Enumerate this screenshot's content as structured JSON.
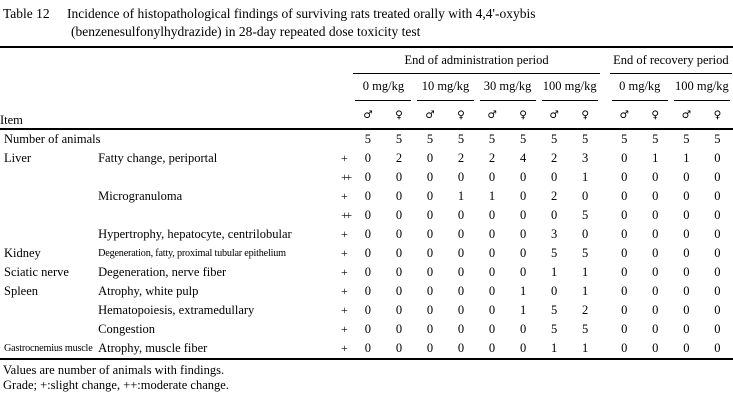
{
  "title": {
    "label": "Table 12",
    "line1": "Incidence of histopathological findings of surviving rats treated orally with 4,4'-oxybis",
    "line2": "(benzenesulfonylhydrazide) in 28-day repeated dose toxicity test"
  },
  "table": {
    "item_header": "Item",
    "period_groups": [
      {
        "label": "End of administration period",
        "doses": [
          "0 mg/kg",
          "10 mg/kg",
          "30 mg/kg",
          "100 mg/kg"
        ]
      },
      {
        "label": "End of recovery period",
        "doses": [
          "0 mg/kg",
          "100 mg/kg"
        ]
      }
    ],
    "sex_symbols": {
      "male": "♂",
      "female": "♀"
    },
    "number_of_animals": {
      "label": "Number of animals",
      "values": [
        5,
        5,
        5,
        5,
        5,
        5,
        5,
        5,
        5,
        5,
        5,
        5
      ]
    },
    "rows": [
      {
        "organ": "Liver",
        "finding": "Fatty change, periportal",
        "grade": "+",
        "values": [
          0,
          2,
          0,
          2,
          2,
          4,
          2,
          3,
          0,
          1,
          1,
          0
        ]
      },
      {
        "organ": "",
        "finding": "",
        "grade": "++",
        "values": [
          0,
          0,
          0,
          0,
          0,
          0,
          0,
          1,
          0,
          0,
          0,
          0
        ]
      },
      {
        "organ": "",
        "finding": "Microgranuloma",
        "grade": "+",
        "values": [
          0,
          0,
          0,
          1,
          1,
          0,
          2,
          0,
          0,
          0,
          0,
          0
        ]
      },
      {
        "organ": "",
        "finding": "",
        "grade": "++",
        "values": [
          0,
          0,
          0,
          0,
          0,
          0,
          0,
          5,
          0,
          0,
          0,
          0
        ]
      },
      {
        "organ": "",
        "finding": "Hypertrophy, hepatocyte, centrilobular",
        "grade": "+",
        "values": [
          0,
          0,
          0,
          0,
          0,
          0,
          3,
          0,
          0,
          0,
          0,
          0
        ]
      },
      {
        "organ": "Kidney",
        "finding": "Degeneration, fatty, proximal tubular epithelium",
        "grade": "+",
        "finding_condensed": true,
        "values": [
          0,
          0,
          0,
          0,
          0,
          0,
          5,
          5,
          0,
          0,
          0,
          0
        ]
      },
      {
        "organ": "Sciatic nerve",
        "finding": "Degeneration, nerve fiber",
        "grade": "+",
        "values": [
          0,
          0,
          0,
          0,
          0,
          0,
          1,
          1,
          0,
          0,
          0,
          0
        ]
      },
      {
        "organ": "Spleen",
        "finding": "Atrophy, white pulp",
        "grade": "+",
        "values": [
          0,
          0,
          0,
          0,
          0,
          1,
          0,
          1,
          0,
          0,
          0,
          0
        ]
      },
      {
        "organ": "",
        "finding": "Hematopoiesis, extramedullary",
        "grade": "+",
        "values": [
          0,
          0,
          0,
          0,
          0,
          1,
          5,
          2,
          0,
          0,
          0,
          0
        ]
      },
      {
        "organ": "",
        "finding": "Congestion",
        "grade": "+",
        "values": [
          0,
          0,
          0,
          0,
          0,
          0,
          5,
          5,
          0,
          0,
          0,
          0
        ]
      },
      {
        "organ": "Gastrocnemius muscle",
        "finding": "Atrophy, muscle fiber",
        "grade": "+",
        "organ_condensed": true,
        "values": [
          0,
          0,
          0,
          0,
          0,
          0,
          1,
          1,
          0,
          0,
          0,
          0
        ]
      }
    ]
  },
  "footnotes": {
    "line1": "Values are number of animals with findings.",
    "line2": "Grade; +:slight change, ++:moderate change."
  }
}
